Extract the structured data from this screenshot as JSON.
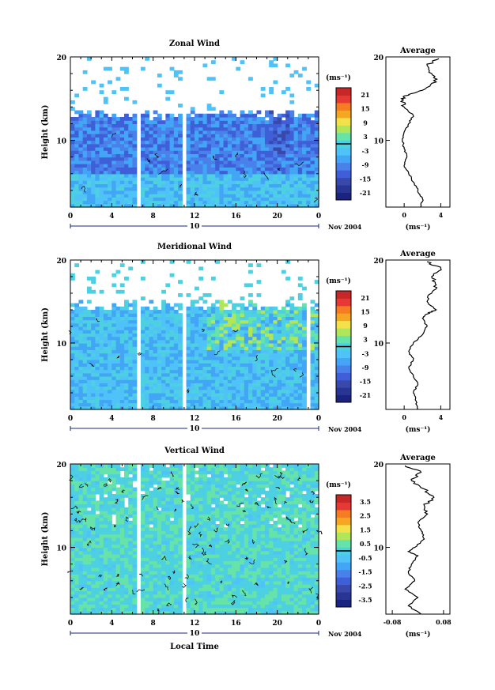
{
  "chart_data": [
    {
      "type": "heatmap",
      "title": "Zonal Wind",
      "ylabel": "Height (km)",
      "xlabel": "",
      "xlim": [
        0,
        24
      ],
      "ylim": [
        2,
        20
      ],
      "xticks": [
        "0",
        "4",
        "8",
        "12",
        "16",
        "20",
        "0"
      ],
      "yticks": [
        "20",
        "10"
      ],
      "date_label": "10",
      "date_suffix": "Nov 2004",
      "colorbar": {
        "unit": "(ms⁻¹)",
        "range": [
          -24,
          24
        ],
        "ticks": [
          "21",
          "15",
          "9",
          "3",
          "-3",
          "-9",
          "-15",
          "-21"
        ],
        "zero_line": 0
      },
      "palette": [
        "#1a237e",
        "#283593",
        "#3949ab",
        "#3f5fd8",
        "#4a80ea",
        "#42a5f5",
        "#4fc3f7",
        "#4dd0e1",
        "#66e3a8",
        "#b2e65a",
        "#f3e14b",
        "#f5a623",
        "#f57c23",
        "#e53935",
        "#c62828"
      ],
      "gaps": [
        [
          6.5,
          7.0
        ],
        [
          10.8,
          11.3
        ]
      ],
      "cloud_top_km": 12.3,
      "profile": {
        "title": "Average",
        "xlim": [
          -2,
          5
        ],
        "xticks": [
          "0",
          "4"
        ],
        "xticks_at": [
          0,
          4
        ],
        "xlabel": "(ms⁻¹)",
        "yticks": [
          "20",
          "10"
        ],
        "x": [
          1.8,
          2.0,
          1.5,
          1.0,
          0.5,
          0.0,
          0.3,
          0.0,
          -0.2,
          0.0,
          0.5,
          1.0,
          0.0,
          -0.3,
          0.5,
          2.0,
          3.5,
          3.0,
          2.5,
          3.8
        ],
        "y": [
          2,
          3,
          4,
          5,
          6,
          7,
          8,
          9,
          10,
          11,
          12,
          13,
          14,
          15,
          15.5,
          16,
          17,
          18,
          19,
          19.8
        ]
      }
    },
    {
      "type": "heatmap",
      "title": "Meridional Wind",
      "ylabel": "Height (km)",
      "xlabel": "",
      "xlim": [
        0,
        24
      ],
      "ylim": [
        2,
        20
      ],
      "xticks": [
        "0",
        "4",
        "8",
        "12",
        "16",
        "20",
        "0"
      ],
      "yticks": [
        "20",
        "10"
      ],
      "date_label": "10",
      "date_suffix": "Nov 2004",
      "colorbar": {
        "unit": "(ms⁻¹)",
        "range": [
          -24,
          24
        ],
        "ticks": [
          "21",
          "15",
          "9",
          "3",
          "-3",
          "-9",
          "-15",
          "-21"
        ],
        "zero_line": 0
      },
      "palette": [
        "#1a237e",
        "#283593",
        "#3949ab",
        "#3f5fd8",
        "#4a80ea",
        "#42a5f5",
        "#4fc3f7",
        "#4dd0e1",
        "#66e3a8",
        "#b2e65a",
        "#f3e14b",
        "#f5a623",
        "#f57c23",
        "#e53935",
        "#c62828"
      ],
      "gaps": [
        [
          6.5,
          7.0
        ],
        [
          10.8,
          11.3
        ],
        [
          22.8,
          23.3
        ]
      ],
      "cloud_top_km": 13.5,
      "profile": {
        "title": "Average",
        "xlim": [
          -2,
          5
        ],
        "xticks": [
          "0",
          "4"
        ],
        "xticks_at": [
          0,
          4
        ],
        "xlabel": "(ms⁻¹)",
        "yticks": [
          "20",
          "10"
        ],
        "x": [
          1.5,
          1.3,
          1.0,
          1.5,
          1.0,
          0.5,
          1.0,
          0.5,
          1.0,
          2.0,
          2.5,
          2.0,
          2.5,
          3.5,
          2.5,
          3.0,
          3.5,
          3.0,
          4.0,
          2.5
        ],
        "y": [
          2,
          3,
          4,
          5,
          6,
          7,
          8,
          9,
          10,
          11,
          12,
          13,
          13.5,
          14,
          15,
          16,
          17,
          18,
          19,
          19.8
        ]
      }
    },
    {
      "type": "heatmap",
      "title": "Vertical Wind",
      "ylabel": "Height (km)",
      "xlabel": "Local Time",
      "xlim": [
        0,
        24
      ],
      "ylim": [
        2,
        20
      ],
      "xticks": [
        "0",
        "4",
        "8",
        "12",
        "16",
        "20",
        "0"
      ],
      "yticks": [
        "20",
        "10"
      ],
      "date_label": "10",
      "date_suffix": "Nov 2004",
      "colorbar": {
        "unit": "(ms⁻¹)",
        "range": [
          -4,
          4
        ],
        "ticks": [
          "3.5",
          "2.5",
          "1.5",
          "0.5",
          "-0.5",
          "-1.5",
          "-2.5",
          "-3.5"
        ],
        "zero_line": 0
      },
      "palette": [
        "#1a237e",
        "#283593",
        "#3949ab",
        "#3f5fd8",
        "#4a80ea",
        "#42a5f5",
        "#4fc3f7",
        "#4dd0e1",
        "#66e3a8",
        "#b2e65a",
        "#f3e14b",
        "#f5a623",
        "#f57c23",
        "#e53935",
        "#c62828"
      ],
      "gaps": [
        [
          6.5,
          7.0
        ],
        [
          10.8,
          11.3
        ]
      ],
      "cloud_top_km": 20,
      "profile": {
        "title": "Average",
        "xlim": [
          -0.1,
          0.1
        ],
        "xticks": [
          "-0.08",
          "0.08"
        ],
        "xticks_at": [
          -0.08,
          0.08
        ],
        "xlabel": "(ms⁻¹)",
        "yticks": [
          "20",
          "10"
        ],
        "x": [
          0.01,
          -0.03,
          0.0,
          -0.04,
          -0.01,
          -0.03,
          -0.02,
          0.0,
          -0.03,
          -0.01,
          0.02,
          0.01,
          0.0,
          0.03,
          0.02,
          0.05,
          0.02,
          -0.02,
          0.01,
          -0.04
        ],
        "y": [
          2,
          3,
          4,
          5,
          6,
          7,
          8,
          9,
          9.5,
          10,
          11,
          12,
          13,
          14,
          15,
          16,
          17,
          18,
          19,
          19.8
        ]
      }
    }
  ]
}
